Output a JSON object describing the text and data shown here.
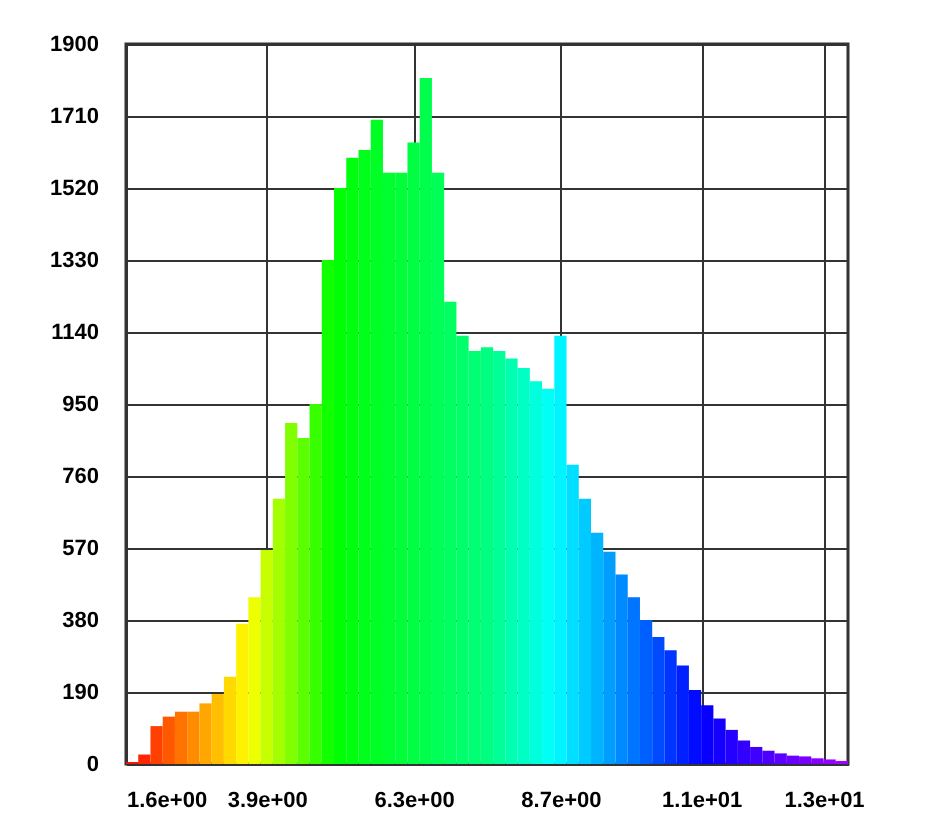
{
  "chart_data": {
    "type": "histogram",
    "bins": [
      1.6,
      1.8,
      2.0,
      2.2,
      2.4,
      2.6,
      2.8,
      3.0,
      3.2,
      3.4,
      3.6,
      3.8,
      4.0,
      4.2,
      4.4,
      4.6,
      4.8,
      5.0,
      5.2,
      5.4,
      5.6,
      5.8,
      6.0,
      6.2,
      6.4,
      6.6,
      6.8,
      7.0,
      7.2,
      7.4,
      7.6,
      7.8,
      8.0,
      8.2,
      8.4,
      8.6,
      8.8,
      9.0,
      9.2,
      9.4,
      9.6,
      9.8,
      10.0,
      10.2,
      10.4,
      10.6,
      10.8,
      11.0,
      11.2,
      11.4,
      11.6,
      11.8,
      12.0,
      12.2,
      12.4,
      12.6,
      12.8,
      13.0,
      13.2,
      13.4
    ],
    "values": [
      5,
      25,
      100,
      125,
      138,
      138,
      160,
      185,
      230,
      370,
      440,
      565,
      700,
      900,
      860,
      950,
      1330,
      1520,
      1600,
      1620,
      1700,
      1560,
      1560,
      1640,
      1810,
      1560,
      1220,
      1130,
      1090,
      1100,
      1090,
      1070,
      1045,
      1010,
      990,
      1130,
      790,
      700,
      610,
      560,
      500,
      440,
      380,
      335,
      300,
      260,
      195,
      155,
      120,
      90,
      62,
      45,
      35,
      28,
      22,
      20,
      15,
      12,
      8
    ],
    "colors": [
      "#ff0d00",
      "#ff2600",
      "#ff4000",
      "#ff5900",
      "#ff7300",
      "#ff8c00",
      "#ffa600",
      "#ffbf00",
      "#ffd900",
      "#fff200",
      "#edff00",
      "#c8ff00",
      "#a4ff00",
      "#80ff00",
      "#5bff00",
      "#37ff00",
      "#12ff00",
      "#00ff05",
      "#00ff0f",
      "#00ff1a",
      "#00ff24",
      "#00ff2e",
      "#00ff38",
      "#00ff42",
      "#00ff4d",
      "#00ff57",
      "#00ff61",
      "#00ff6b",
      "#00ff75",
      "#00ff80",
      "#00ff97",
      "#00ffae",
      "#00ffc5",
      "#00ffdc",
      "#00fff4",
      "#00f4ff",
      "#00dfff",
      "#00caff",
      "#00b5ff",
      "#009fff",
      "#008aff",
      "#0075ff",
      "#0060ff",
      "#004aff",
      "#0035ff",
      "#0020ff",
      "#000bff",
      "#0700ff",
      "#1500ff",
      "#2300ff",
      "#3200ff",
      "#4000ff",
      "#4e00ff",
      "#5c00ff",
      "#6a00ff",
      "#7800ff",
      "#8700ff",
      "#9500ff",
      "#a300ff"
    ],
    "xlim": [
      1.6,
      13.4
    ],
    "xticks": [
      {
        "value": 1.6,
        "label": "1.6e+00"
      },
      {
        "value": 3.9,
        "label": "3.9e+00"
      },
      {
        "value": 6.3,
        "label": "6.3e+00"
      },
      {
        "value": 8.7,
        "label": "8.7e+00"
      },
      {
        "value": 11,
        "label": "1.1e+01"
      },
      {
        "value": 13,
        "label": "1.3e+01"
      }
    ],
    "ylim": [
      0,
      1900
    ],
    "yticks": [
      0,
      190,
      380,
      570,
      760,
      950,
      1140,
      1330,
      1520,
      1710,
      1900
    ],
    "grid": true
  }
}
